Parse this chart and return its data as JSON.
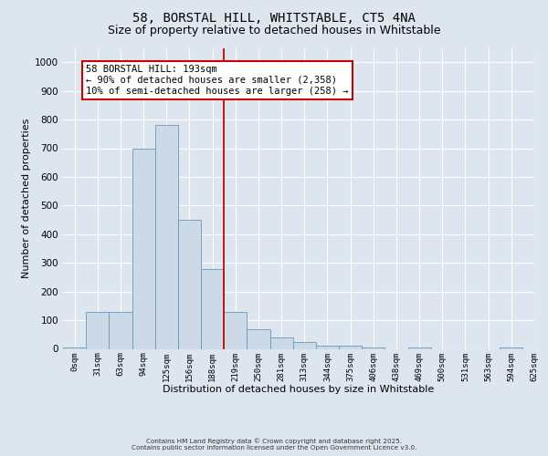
{
  "title": "58, BORSTAL HILL, WHITSTABLE, CT5 4NA",
  "subtitle": "Size of property relative to detached houses in Whitstable",
  "xlabel": "Distribution of detached houses by size in Whitstable",
  "ylabel": "Number of detached properties",
  "bar_values": [
    5,
    130,
    130,
    700,
    780,
    450,
    280,
    130,
    70,
    40,
    25,
    10,
    10,
    5,
    0,
    5,
    0,
    0,
    0,
    5
  ],
  "bin_labels": [
    "0sqm",
    "31sqm",
    "63sqm",
    "94sqm",
    "125sqm",
    "156sqm",
    "188sqm",
    "219sqm",
    "250sqm",
    "281sqm",
    "313sqm",
    "344sqm",
    "375sqm",
    "406sqm",
    "438sqm",
    "469sqm",
    "500sqm",
    "531sqm",
    "563sqm",
    "594sqm",
    "625sqm"
  ],
  "bar_color": "#ccdae8",
  "bar_edge_color": "#6699bb",
  "vline_x": 6.5,
  "vline_color": "#cc0000",
  "annotation_text": "58 BORSTAL HILL: 193sqm\n← 90% of detached houses are smaller (2,358)\n10% of semi-detached houses are larger (258) →",
  "annotation_box_color": "#ffffff",
  "annotation_box_edge": "#cc0000",
  "ylim": [
    0,
    1050
  ],
  "yticks": [
    0,
    100,
    200,
    300,
    400,
    500,
    600,
    700,
    800,
    900,
    1000
  ],
  "background_color": "#dde6ef",
  "plot_bg_color": "#dde6ef",
  "grid_color": "#ffffff",
  "footer_line1": "Contains HM Land Registry data © Crown copyright and database right 2025.",
  "footer_line2": "Contains public sector information licensed under the Open Government Licence v3.0.",
  "title_fontsize": 10,
  "subtitle_fontsize": 9,
  "annot_fontsize": 7.5
}
